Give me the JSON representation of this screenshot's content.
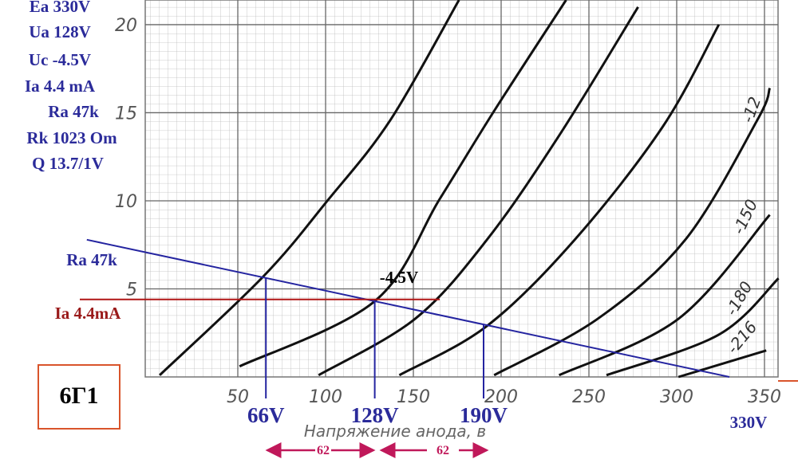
{
  "chart_data": {
    "type": "line",
    "x_label": "Напряжение анода, в",
    "xlim": [
      0,
      360
    ],
    "ylim": [
      0,
      21.4
    ],
    "xticks": [
      50,
      100,
      150,
      200,
      250,
      300,
      350
    ],
    "yticks": [
      5,
      10,
      15,
      20
    ],
    "grid": true,
    "series": [
      {
        "color": "#111",
        "x": [
          5.5,
          64.5,
          101,
          137,
          176
        ],
        "values": [
          0.1,
          5.7,
          10.0,
          14.6,
          21.4
        ]
      },
      {
        "color": "#111",
        "x": [
          51,
          128,
          165,
          196,
          237
        ],
        "values": [
          0.6,
          4.3,
          10.1,
          15.1,
          21.4
        ]
      },
      {
        "color": "#111",
        "x": [
          96,
          151,
          192,
          233,
          278
        ],
        "values": [
          0.1,
          3.3,
          7.8,
          13.7,
          21
        ]
      },
      {
        "color": "#111",
        "x": [
          142,
          192,
          242,
          292,
          324
        ],
        "values": [
          0.1,
          2.9,
          7.8,
          14.2,
          20
        ]
      },
      {
        "name": "-12",
        "color": "#111",
        "x": [
          196,
          255,
          305,
          346,
          353
        ],
        "values": [
          0.1,
          3.3,
          7.8,
          14.6,
          16.4
        ]
      },
      {
        "name": "-150",
        "color": "#111",
        "x": [
          233,
          301,
          353
        ],
        "values": [
          0.1,
          3.3,
          9.2
        ]
      },
      {
        "name": "-180",
        "color": "#111",
        "x": [
          260,
          324,
          358
        ],
        "values": [
          0.1,
          2.4,
          5.6
        ]
      },
      {
        "name": "-216",
        "color": "#111",
        "x": [
          301,
          351
        ],
        "values": [
          0,
          1.5
        ]
      }
    ],
    "load_line": {
      "label": "Ra 47k",
      "color": "#2424a0",
      "x": [
        -36,
        330
      ],
      "values": [
        7.79,
        0
      ]
    },
    "current_line": {
      "label": "Ia 4.4mA",
      "color": "#b01515",
      "value": 4.4,
      "x": [
        -40,
        165
      ]
    },
    "operating_point_label": "-4.5V",
    "markers": [
      {
        "label": "66V",
        "x": 66,
        "y": 5.62
      },
      {
        "label": "128V",
        "x": 128,
        "y": 4.3
      },
      {
        "label": "190V",
        "x": 190,
        "y": 2.98
      }
    ],
    "supply_label": "330V",
    "spans": [
      "62",
      "62"
    ],
    "tube": "6Г1",
    "notes": [
      "Ea 330V",
      "Ua 128V",
      "Uc -4.5V",
      "Ia 4.4 mA",
      "Ra 47k",
      "Rk 1023 Om",
      "Q 13.7/1V"
    ]
  }
}
